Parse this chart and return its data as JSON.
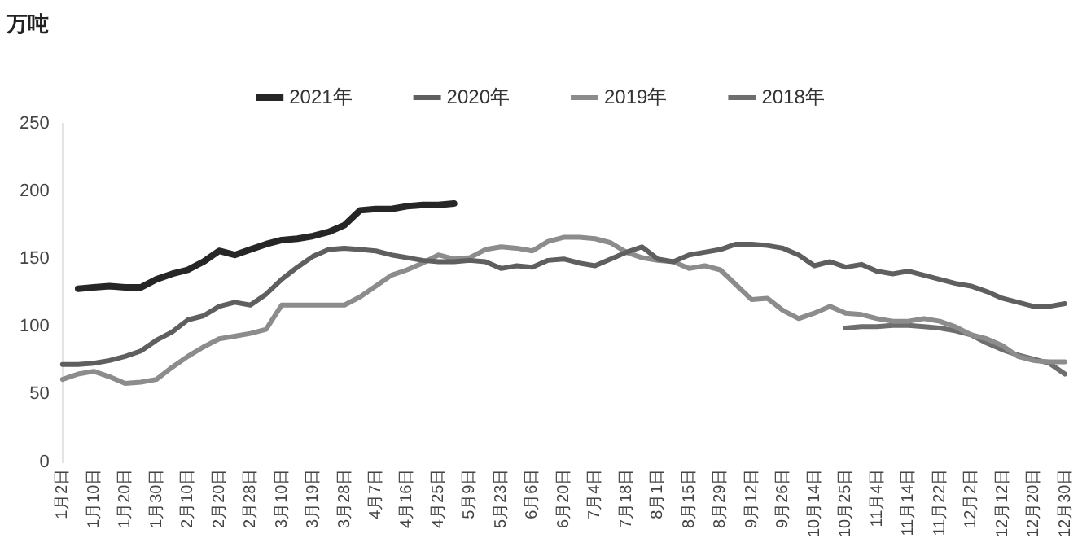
{
  "chart_data": {
    "type": "line",
    "ylabel": "万吨",
    "categories": [
      "1月2日",
      null,
      "1月10日",
      null,
      "1月20日",
      null,
      "1月30日",
      null,
      "2月10日",
      null,
      "2月20日",
      null,
      "2月28日",
      null,
      "3月10日",
      null,
      "3月19日",
      null,
      "3月28日",
      null,
      "4月7日",
      null,
      "4月16日",
      null,
      "4月25日",
      null,
      "5月9日",
      null,
      "5月23日",
      null,
      "6月6日",
      null,
      "6月20日",
      null,
      "7月4日",
      null,
      "7月18日",
      null,
      "8月1日",
      null,
      "8月15日",
      null,
      "8月29日",
      null,
      "9月12日",
      null,
      "9月26日",
      null,
      "10月14日",
      null,
      "10月25日",
      null,
      "11月4日",
      null,
      "11月14日",
      null,
      "11月22日",
      null,
      "12月2日",
      null,
      "12月12日",
      null,
      "12月20日",
      null,
      "12月30日"
    ],
    "series": [
      {
        "name": "2021年",
        "color": "#262626",
        "values": [
          null,
          128,
          129,
          130,
          129,
          129,
          135,
          139,
          142,
          148,
          156,
          153,
          157,
          161,
          164,
          165,
          167,
          170,
          175,
          186,
          187,
          187,
          189,
          190,
          190,
          191,
          null,
          null,
          null,
          null,
          null,
          null,
          null,
          null,
          null,
          null,
          null,
          null,
          null,
          null,
          null,
          null,
          null,
          null,
          null,
          null,
          null,
          null,
          null,
          null,
          null,
          null,
          null,
          null,
          null,
          null,
          null,
          null,
          null,
          null,
          null,
          null,
          null,
          null,
          null
        ]
      },
      {
        "name": "2020年",
        "color": "#5f5f5f",
        "values": [
          72,
          72,
          73,
          75,
          78,
          82,
          90,
          96,
          105,
          108,
          115,
          118,
          116,
          124,
          135,
          144,
          152,
          157,
          158,
          157,
          156,
          153,
          151,
          149,
          148,
          148,
          149,
          148,
          143,
          145,
          144,
          149,
          150,
          147,
          145,
          150,
          155,
          159,
          150,
          148,
          153,
          155,
          157,
          161,
          161,
          160,
          158,
          153,
          145,
          148,
          144,
          146,
          141,
          139,
          141,
          138,
          135,
          132,
          130,
          126,
          121,
          118,
          115,
          115,
          117
        ]
      },
      {
        "name": "2019年",
        "color": "#8c8c8c",
        "values": [
          61,
          65,
          67,
          63,
          58,
          59,
          61,
          70,
          78,
          85,
          91,
          93,
          95,
          98,
          116,
          116,
          116,
          116,
          116,
          122,
          130,
          138,
          142,
          147,
          153,
          150,
          151,
          157,
          159,
          158,
          156,
          163,
          166,
          166,
          165,
          162,
          155,
          151,
          149,
          148,
          143,
          145,
          142,
          131,
          120,
          121,
          112,
          106,
          110,
          115,
          110,
          109,
          106,
          104,
          104,
          106,
          104,
          100,
          94,
          91,
          86,
          78,
          75,
          74,
          74
        ]
      },
      {
        "name": "2018年",
        "color": "#6e6e6e",
        "values": [
          null,
          null,
          null,
          null,
          null,
          null,
          null,
          null,
          null,
          null,
          null,
          null,
          null,
          null,
          null,
          null,
          null,
          null,
          null,
          null,
          null,
          null,
          null,
          null,
          null,
          null,
          null,
          null,
          null,
          null,
          null,
          null,
          null,
          null,
          null,
          null,
          null,
          null,
          null,
          null,
          null,
          null,
          null,
          null,
          null,
          null,
          null,
          null,
          null,
          null,
          99,
          100,
          100,
          101,
          101,
          100,
          99,
          97,
          94,
          88,
          83,
          79,
          76,
          73,
          65
        ]
      }
    ],
    "ylim": [
      0,
      250
    ],
    "yticks": [
      0,
      50,
      100,
      150,
      200,
      250
    ],
    "grid": false,
    "legend": "top",
    "marker": "none",
    "line_style": "solid"
  }
}
